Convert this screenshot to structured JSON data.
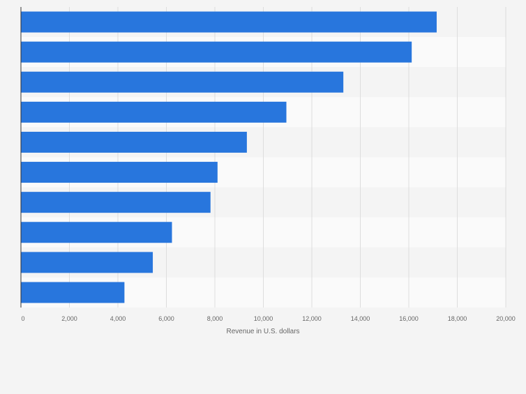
{
  "chart_data": {
    "type": "bar",
    "orientation": "horizontal",
    "categories": [
      "",
      "",
      "",
      "",
      "",
      "",
      "",
      "",
      "",
      ""
    ],
    "values": [
      17150,
      16120,
      13300,
      10950,
      9320,
      8110,
      7820,
      6230,
      5440,
      4270
    ],
    "xlabel": "Revenue in U.S. dollars",
    "ylabel": "",
    "xlim": [
      0,
      20000
    ],
    "xticks": [
      0,
      2000,
      4000,
      6000,
      8000,
      10000,
      12000,
      14000,
      16000,
      18000,
      20000
    ],
    "xtick_labels": [
      "0",
      "2,000",
      "4,000",
      "6,000",
      "8,000",
      "10,000",
      "12,000",
      "14,000",
      "16,000",
      "18,000",
      "20,000"
    ],
    "grid": true,
    "legend": "none",
    "colors": {
      "bar": "#2876dd",
      "background": "#f4f4f4",
      "band_light": "#fafafa",
      "band_dark": "#f4f4f4",
      "grid": "#dddddd",
      "axis": "#333333",
      "tick_text": "#666666"
    }
  }
}
